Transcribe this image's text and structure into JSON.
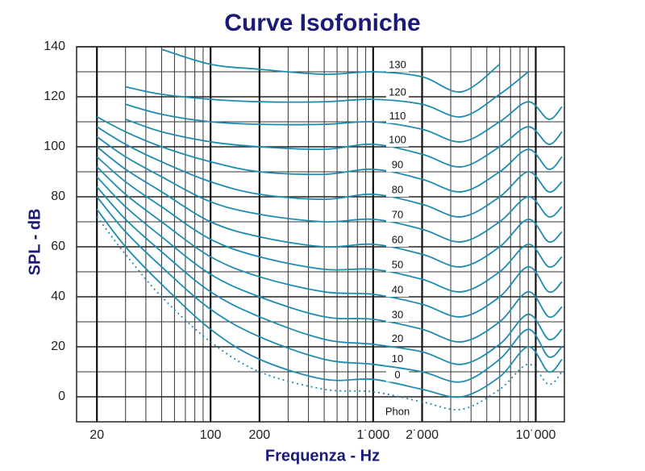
{
  "chart_data": {
    "type": "line",
    "title": "Curve Isofoniche",
    "x_label": "Frequenza - Hz",
    "y_label": "SPL - dB",
    "legend_title": "Phon",
    "log_x": true,
    "grid": true,
    "xlim": [
      15,
      15000
    ],
    "ylim": [
      -10,
      140
    ],
    "xticks": [
      20,
      100,
      200,
      {
        "value": 1000,
        "label": "1˙000"
      },
      {
        "value": 2000,
        "label": "2˙000"
      },
      {
        "value": 10000,
        "label": "10˙000"
      }
    ],
    "xminorticks": [
      30,
      40,
      50,
      60,
      70,
      80,
      90,
      300,
      400,
      500,
      600,
      700,
      800,
      900,
      3000,
      4000,
      5000,
      6000,
      7000,
      8000,
      9000
    ],
    "yticks": [
      0,
      20,
      40,
      60,
      80,
      100,
      120,
      140
    ],
    "yminorticks": [
      10,
      30,
      50,
      70,
      90,
      110,
      130
    ],
    "x": [
      20,
      30,
      50,
      100,
      200,
      500,
      1000,
      2000,
      3500,
      6000,
      9000,
      12000,
      14500
    ],
    "series": [
      {
        "name": "0",
        "color": "#1e8cb0",
        "values": [
          75,
          60,
          45,
          27,
          15,
          7,
          7,
          3,
          0,
          8,
          20,
          10,
          15
        ]
      },
      {
        "name": "10",
        "color": "#1e8cb0",
        "values": [
          80,
          66,
          52,
          35,
          24,
          15,
          13,
          10,
          6,
          15,
          27,
          16,
          20
        ]
      },
      {
        "name": "20",
        "color": "#1e8cb0",
        "values": [
          84,
          71,
          58,
          42,
          32,
          23,
          21,
          18,
          13,
          21,
          33,
          23,
          27
        ]
      },
      {
        "name": "30",
        "color": "#1e8cb0",
        "values": [
          88,
          76,
          64,
          49,
          40,
          32,
          31,
          27,
          22,
          30,
          42,
          32,
          36
        ]
      },
      {
        "name": "40",
        "color": "#1e8cb0",
        "values": [
          92,
          81,
          70,
          56,
          48,
          42,
          41,
          37,
          32,
          40,
          52,
          42,
          46
        ]
      },
      {
        "name": "50",
        "color": "#1e8cb0",
        "values": [
          96,
          86,
          76,
          63,
          56,
          51,
          51,
          47,
          42,
          50,
          61,
          52,
          56
        ]
      },
      {
        "name": "60",
        "color": "#1e8cb0",
        "values": [
          100,
          91,
          82,
          70,
          64,
          60,
          61,
          57,
          52,
          60,
          71,
          62,
          66
        ]
      },
      {
        "name": "70",
        "color": "#1e8cb0",
        "values": [
          104,
          96,
          88,
          78,
          73,
          70,
          71,
          67,
          62,
          70,
          80,
          72,
          76
        ]
      },
      {
        "name": "80",
        "color": "#1e8cb0",
        "values": [
          108,
          101,
          94,
          86,
          81,
          79,
          81,
          77,
          72,
          80,
          90,
          82,
          86
        ]
      },
      {
        "name": "90",
        "color": "#1e8cb0",
        "values": [
          112,
          106,
          100,
          94,
          90,
          89,
          91,
          87,
          82,
          90,
          99,
          91,
          96
        ]
      },
      {
        "name": "100",
        "color": "#1e8cb0",
        "values": [
          null,
          111,
          106,
          102,
          100,
          99,
          101,
          97,
          92,
          100,
          108,
          101,
          106
        ]
      },
      {
        "name": "110",
        "color": "#1e8cb0",
        "values": [
          null,
          117,
          113,
          110,
          109,
          109,
          110,
          107,
          102,
          110,
          118,
          111,
          116
        ]
      },
      {
        "name": "120",
        "color": "#1e8cb0",
        "values": [
          null,
          124,
          121,
          119,
          118,
          118,
          119,
          117,
          112,
          121,
          130,
          null,
          null
        ]
      },
      {
        "name": "130",
        "color": "#1e8cb0",
        "values": [
          null,
          null,
          139,
          133,
          131,
          129,
          130,
          128,
          122,
          133,
          null,
          null,
          null
        ]
      },
      {
        "color": "#1e8cb0",
        "dotted": true,
        "values": [
          72,
          57,
          40,
          22,
          10,
          3,
          2,
          -2,
          -5,
          3,
          13,
          5,
          10
        ]
      }
    ]
  }
}
